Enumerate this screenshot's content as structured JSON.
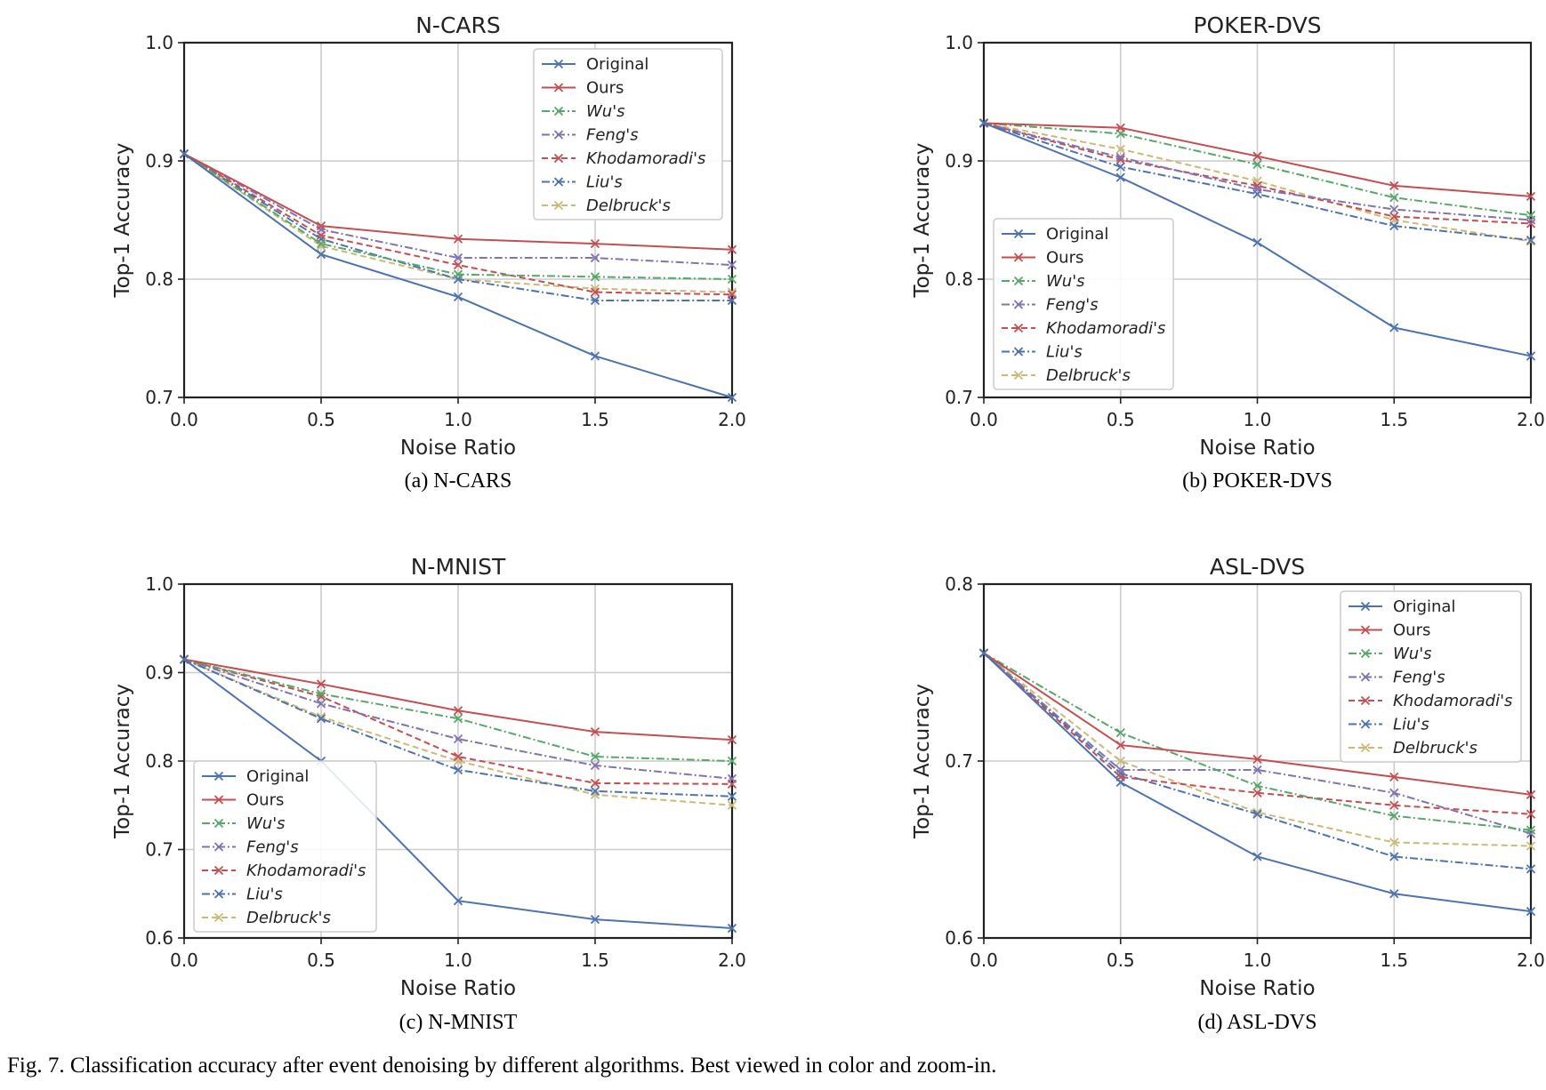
{
  "figure": {
    "caption": "Fig. 7.  Classification accuracy after event denoising by different algorithms. Best viewed in color and zoom-in."
  },
  "series_styles": [
    {
      "name": "Original",
      "color": "#4c72b0",
      "dash": "solid"
    },
    {
      "name": "Ours",
      "color": "#c44e52",
      "dash": "solid"
    },
    {
      "name": "Wu's",
      "color": "#55a868",
      "dash": "dashdot"
    },
    {
      "name": "Feng's",
      "color": "#8172b2",
      "dash": "dashdot"
    },
    {
      "name": "Khodamoradi's",
      "color": "#c44e52",
      "dash": "dashed"
    },
    {
      "name": "Liu's",
      "color": "#4c72b0",
      "dash": "dashdot"
    },
    {
      "name": "Delbruck's",
      "color": "#ccb974",
      "dash": "dashed"
    }
  ],
  "chart_data": [
    {
      "type": "line",
      "title": "N-CARS",
      "subcaption": "(a) N-CARS",
      "xlabel": "Noise Ratio",
      "ylabel": "Top-1 Accuracy",
      "x": [
        0.0,
        0.5,
        1.0,
        1.5,
        2.0
      ],
      "xlim": [
        0.0,
        2.0
      ],
      "ylim": [
        0.7,
        1.0
      ],
      "xticks": [
        "0.0",
        "0.5",
        "1.0",
        "1.5",
        "2.0"
      ],
      "yticks": [
        "0.7",
        "0.8",
        "0.9",
        "1.0"
      ],
      "grid": true,
      "legend": "top-right",
      "series": [
        {
          "name": "Original",
          "values": [
            0.906,
            0.821,
            0.785,
            0.735,
            0.7
          ]
        },
        {
          "name": "Ours",
          "values": [
            0.906,
            0.845,
            0.834,
            0.83,
            0.825
          ]
        },
        {
          "name": "Wu's",
          "values": [
            0.906,
            0.83,
            0.804,
            0.802,
            0.8
          ]
        },
        {
          "name": "Feng's",
          "values": [
            0.906,
            0.842,
            0.818,
            0.818,
            0.812
          ]
        },
        {
          "name": "Khodamoradi's",
          "values": [
            0.906,
            0.837,
            0.812,
            0.789,
            0.787
          ]
        },
        {
          "name": "Liu's",
          "values": [
            0.906,
            0.834,
            0.8,
            0.782,
            0.782
          ]
        },
        {
          "name": "Delbruck's",
          "values": [
            0.906,
            0.828,
            0.8,
            0.792,
            0.789
          ]
        }
      ]
    },
    {
      "type": "line",
      "title": "POKER-DVS",
      "subcaption": "(b) POKER-DVS",
      "xlabel": "Noise Ratio",
      "ylabel": "Top-1 Accuracy",
      "x": [
        0.0,
        0.5,
        1.0,
        1.5,
        2.0
      ],
      "xlim": [
        0.0,
        2.0
      ],
      "ylim": [
        0.7,
        1.0
      ],
      "xticks": [
        "0.0",
        "0.5",
        "1.0",
        "1.5",
        "2.0"
      ],
      "yticks": [
        "0.7",
        "0.8",
        "0.9",
        "1.0"
      ],
      "grid": true,
      "legend": "bottom-left",
      "series": [
        {
          "name": "Original",
          "values": [
            0.932,
            0.886,
            0.831,
            0.759,
            0.735
          ]
        },
        {
          "name": "Ours",
          "values": [
            0.932,
            0.928,
            0.904,
            0.879,
            0.87
          ]
        },
        {
          "name": "Wu's",
          "values": [
            0.932,
            0.923,
            0.897,
            0.869,
            0.854
          ]
        },
        {
          "name": "Feng's",
          "values": [
            0.932,
            0.903,
            0.876,
            0.859,
            0.85
          ]
        },
        {
          "name": "Khodamoradi's",
          "values": [
            0.932,
            0.901,
            0.879,
            0.853,
            0.847
          ]
        },
        {
          "name": "Liu's",
          "values": [
            0.932,
            0.895,
            0.872,
            0.845,
            0.833
          ]
        },
        {
          "name": "Delbruck's",
          "values": [
            0.932,
            0.91,
            0.883,
            0.85,
            0.832
          ]
        }
      ]
    },
    {
      "type": "line",
      "title": "N-MNIST",
      "subcaption": "(c) N-MNIST",
      "xlabel": "Noise Ratio",
      "ylabel": "Top-1 Accuracy",
      "x": [
        0.0,
        0.5,
        1.0,
        1.5,
        2.0
      ],
      "xlim": [
        0.0,
        2.0
      ],
      "ylim": [
        0.6,
        1.0
      ],
      "xticks": [
        "0.0",
        "0.5",
        "1.0",
        "1.5",
        "2.0"
      ],
      "yticks": [
        "0.6",
        "0.7",
        "0.8",
        "0.9",
        "1.0"
      ],
      "grid": true,
      "legend": "bottom-left",
      "series": [
        {
          "name": "Original",
          "values": [
            0.915,
            0.8,
            0.642,
            0.621,
            0.611
          ]
        },
        {
          "name": "Ours",
          "values": [
            0.915,
            0.887,
            0.857,
            0.833,
            0.824
          ]
        },
        {
          "name": "Wu's",
          "values": [
            0.915,
            0.876,
            0.848,
            0.805,
            0.8
          ]
        },
        {
          "name": "Feng's",
          "values": [
            0.915,
            0.865,
            0.825,
            0.795,
            0.78
          ]
        },
        {
          "name": "Khodamoradi's",
          "values": [
            0.915,
            0.873,
            0.805,
            0.775,
            0.774
          ]
        },
        {
          "name": "Liu's",
          "values": [
            0.915,
            0.848,
            0.79,
            0.766,
            0.76
          ]
        },
        {
          "name": "Delbruck's",
          "values": [
            0.915,
            0.85,
            0.8,
            0.762,
            0.75
          ]
        }
      ]
    },
    {
      "type": "line",
      "title": "ASL-DVS",
      "subcaption": "(d) ASL-DVS",
      "xlabel": "Noise Ratio",
      "ylabel": "Top-1 Accuracy",
      "x": [
        0.0,
        0.5,
        1.0,
        1.5,
        2.0
      ],
      "xlim": [
        0.0,
        2.0
      ],
      "ylim": [
        0.6,
        0.8
      ],
      "xticks": [
        "0.0",
        "0.5",
        "1.0",
        "1.5",
        "2.0"
      ],
      "yticks": [
        "0.6",
        "0.7",
        "0.8"
      ],
      "grid": true,
      "legend": "top-right",
      "series": [
        {
          "name": "Original",
          "values": [
            0.761,
            0.688,
            0.646,
            0.625,
            0.615
          ]
        },
        {
          "name": "Ours",
          "values": [
            0.761,
            0.709,
            0.701,
            0.691,
            0.681
          ]
        },
        {
          "name": "Wu's",
          "values": [
            0.761,
            0.716,
            0.686,
            0.669,
            0.661
          ]
        },
        {
          "name": "Feng's",
          "values": [
            0.761,
            0.695,
            0.695,
            0.682,
            0.659
          ]
        },
        {
          "name": "Khodamoradi's",
          "values": [
            0.761,
            0.691,
            0.682,
            0.675,
            0.67
          ]
        },
        {
          "name": "Liu's",
          "values": [
            0.761,
            0.693,
            0.67,
            0.646,
            0.639
          ]
        },
        {
          "name": "Delbruck's",
          "values": [
            0.761,
            0.7,
            0.671,
            0.654,
            0.652
          ]
        }
      ]
    }
  ]
}
